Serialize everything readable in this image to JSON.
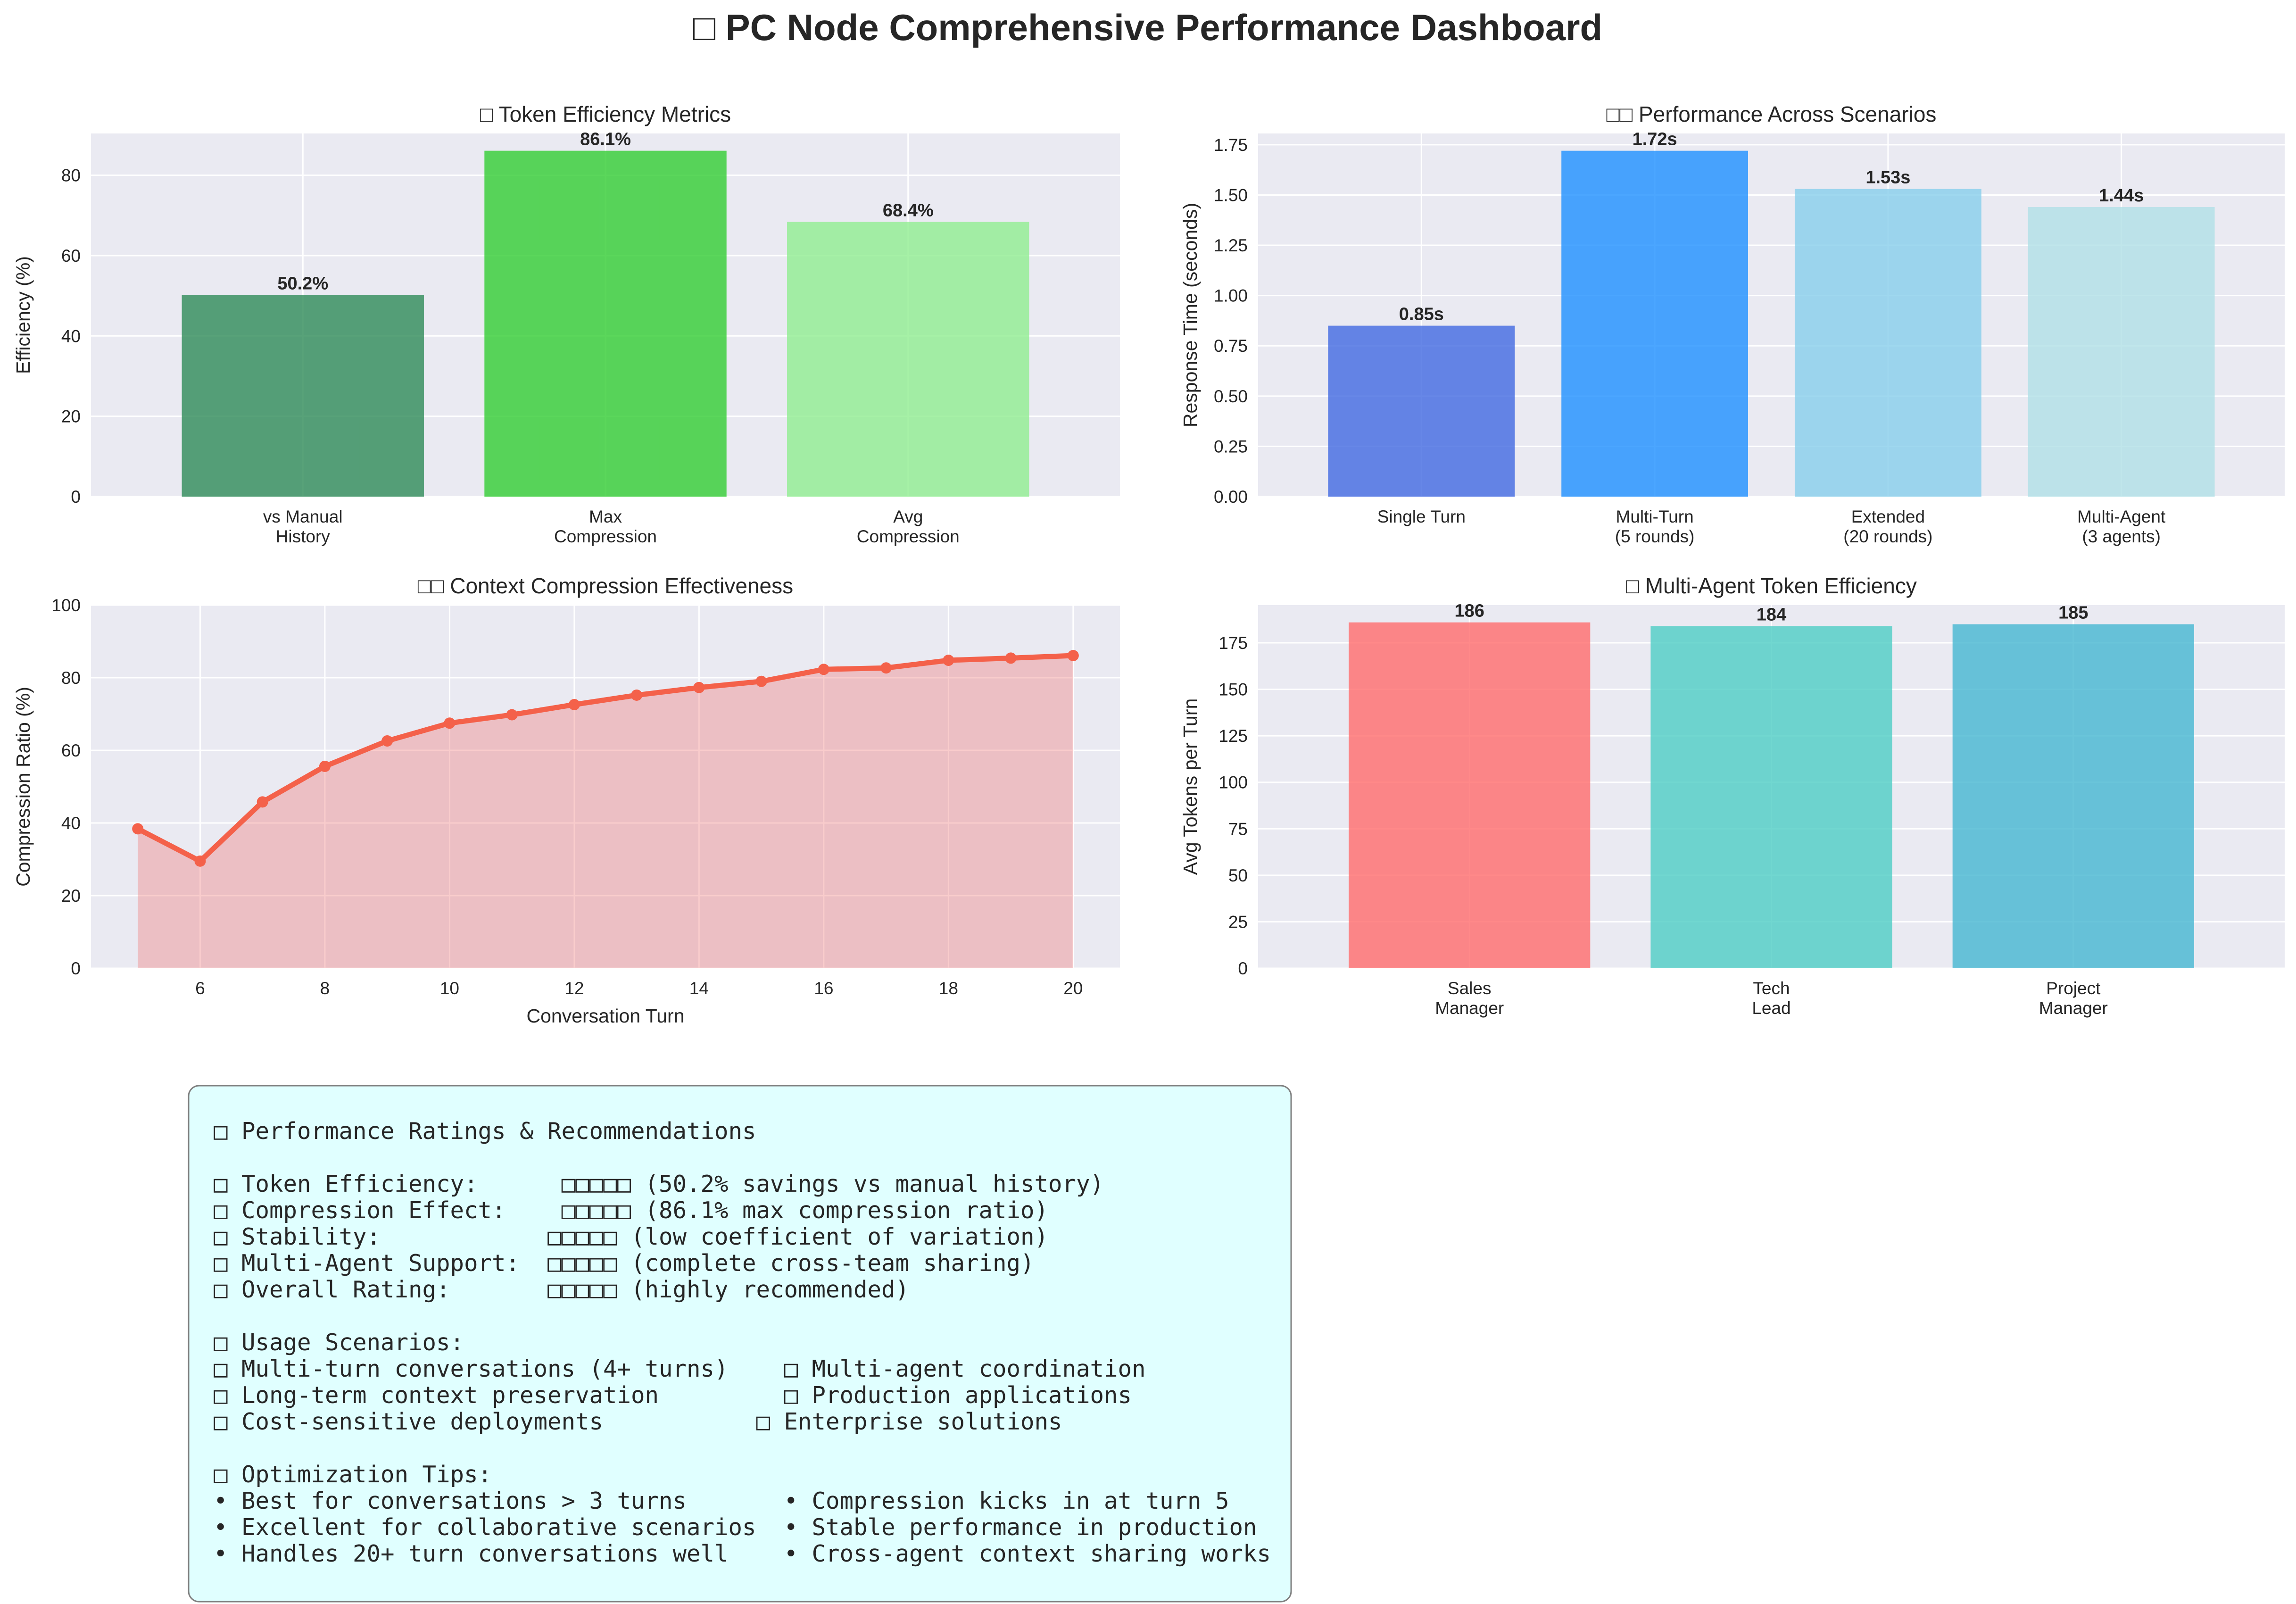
{
  "dashboard": {
    "title": "□ PC Node Comprehensive Performance Dashboard",
    "colors": {
      "panel_bg": "#EAEAF2",
      "grid": "#FFFFFF",
      "text": "#262626"
    }
  },
  "chart_data": [
    {
      "id": "token-efficiency",
      "type": "bar",
      "title": "□ Token Efficiency Metrics",
      "xlabel": "",
      "ylabel": "Efficiency (%)",
      "categories": [
        "vs Manual\nHistory",
        "Max\nCompression",
        "Avg\nCompression"
      ],
      "values": [
        50.2,
        86.1,
        68.4
      ],
      "value_labels": [
        "50.2%",
        "86.1%",
        "68.4%"
      ],
      "colors": [
        "#2E8B57",
        "#32CD32",
        "#90EE90"
      ],
      "ylim": [
        0,
        90.4
      ],
      "yticks": [
        0,
        20,
        40,
        60,
        80
      ],
      "grid": true
    },
    {
      "id": "scenario-performance",
      "type": "bar",
      "title": "□□  Performance Across Scenarios",
      "xlabel": "",
      "ylabel": "Response Time (seconds)",
      "categories": [
        "Single Turn",
        "Multi-Turn\n(5 rounds)",
        "Extended\n(20 rounds)",
        "Multi-Agent\n(3 agents)"
      ],
      "values": [
        0.85,
        1.72,
        1.53,
        1.44
      ],
      "value_labels": [
        "0.85s",
        "1.72s",
        "1.53s",
        "1.44s"
      ],
      "colors": [
        "#4169E1",
        "#1E90FF",
        "#87CEEB",
        "#B0E0E6"
      ],
      "ylim": [
        0,
        1.806
      ],
      "yticks": [
        0.0,
        0.25,
        0.5,
        0.75,
        1.0,
        1.25,
        1.5,
        1.75
      ],
      "ytick_labels": [
        "0.00",
        "0.25",
        "0.50",
        "0.75",
        "1.00",
        "1.25",
        "1.50",
        "1.75"
      ],
      "grid": true
    },
    {
      "id": "context-compression",
      "type": "area",
      "title": "□□  Context Compression Effectiveness",
      "xlabel": "Conversation Turn",
      "ylabel": "Compression Ratio (%)",
      "x": [
        5,
        6,
        7,
        8,
        9,
        10,
        11,
        12,
        13,
        14,
        15,
        16,
        17,
        18,
        19,
        20
      ],
      "y": [
        38.4,
        29.5,
        45.8,
        55.6,
        62.6,
        67.5,
        69.8,
        72.6,
        75.2,
        77.3,
        79.0,
        82.3,
        82.7,
        84.8,
        85.4,
        86.1
      ],
      "xlim": [
        4.25,
        20.75
      ],
      "ylim": [
        0,
        100
      ],
      "xticks": [
        6,
        8,
        10,
        12,
        14,
        16,
        18,
        20
      ],
      "yticks": [
        0,
        20,
        40,
        60,
        80,
        100
      ],
      "color": "#F4614A",
      "fill_color": "#F08080",
      "grid": true
    },
    {
      "id": "multi-agent-tokens",
      "type": "bar",
      "title": "□ Multi-Agent Token Efficiency",
      "xlabel": "",
      "ylabel": "Avg Tokens per Turn",
      "categories": [
        "Sales\nManager",
        "Tech\nLead",
        "Project\nManager"
      ],
      "values": [
        186,
        184,
        185
      ],
      "value_labels": [
        "186",
        "184",
        "185"
      ],
      "colors": [
        "#FF6B6B",
        "#4ECDC4",
        "#45B7D1"
      ],
      "ylim": [
        0,
        195.3
      ],
      "yticks": [
        0,
        25,
        50,
        75,
        100,
        125,
        150,
        175
      ],
      "grid": true
    }
  ],
  "summary": {
    "colors": {
      "bg": "#E0FFFF",
      "border": "#808080"
    },
    "lines": [
      "□ Performance Ratings & Recommendations",
      "",
      "□ Token Efficiency:      □□□□□ (50.2% savings vs manual history)",
      "□ Compression Effect:    □□□□□ (86.1% max compression ratio)",
      "□ Stability:            □□□□□ (low coefficient of variation)",
      "□ Multi-Agent Support:  □□□□□ (complete cross-team sharing)",
      "□ Overall Rating:       □□□□□ (highly recommended)",
      "",
      "□ Usage Scenarios:",
      "□ Multi-turn conversations (4+ turns)    □ Multi-agent coordination",
      "□ Long-term context preservation         □ Production applications",
      "□ Cost-sensitive deployments           □ Enterprise solutions",
      "",
      "□ Optimization Tips:",
      "• Best for conversations > 3 turns       • Compression kicks in at turn 5",
      "• Excellent for collaborative scenarios  • Stable performance in production",
      "• Handles 20+ turn conversations well    • Cross-agent context sharing works"
    ]
  }
}
